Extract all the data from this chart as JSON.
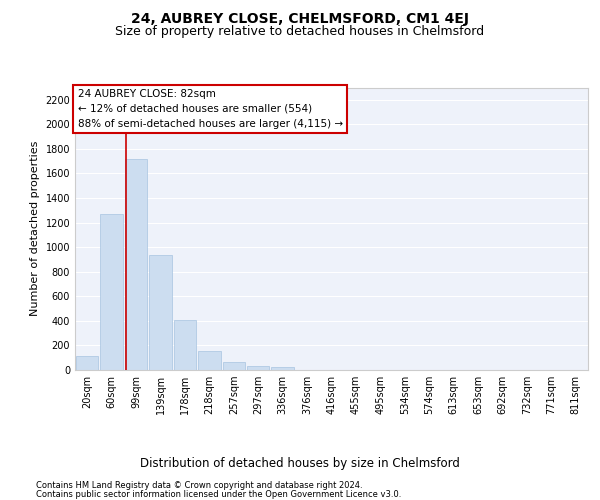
{
  "title": "24, AUBREY CLOSE, CHELMSFORD, CM1 4EJ",
  "subtitle": "Size of property relative to detached houses in Chelmsford",
  "xlabel": "Distribution of detached houses by size in Chelmsford",
  "ylabel": "Number of detached properties",
  "footer1": "Contains HM Land Registry data © Crown copyright and database right 2024.",
  "footer2": "Contains public sector information licensed under the Open Government Licence v3.0.",
  "categories": [
    "20sqm",
    "60sqm",
    "99sqm",
    "139sqm",
    "178sqm",
    "218sqm",
    "257sqm",
    "297sqm",
    "336sqm",
    "376sqm",
    "416sqm",
    "455sqm",
    "495sqm",
    "534sqm",
    "574sqm",
    "613sqm",
    "653sqm",
    "692sqm",
    "732sqm",
    "771sqm",
    "811sqm"
  ],
  "values": [
    110,
    1270,
    1720,
    940,
    410,
    155,
    65,
    35,
    25,
    0,
    0,
    0,
    0,
    0,
    0,
    0,
    0,
    0,
    0,
    0,
    0
  ],
  "bar_color": "#ccddf0",
  "bar_edgecolor": "#a8c4e0",
  "ylim": [
    0,
    2300
  ],
  "yticks": [
    0,
    200,
    400,
    600,
    800,
    1000,
    1200,
    1400,
    1600,
    1800,
    2000,
    2200
  ],
  "property_line_x": 1.58,
  "property_line_color": "#cc0000",
  "annotation_text": "24 AUBREY CLOSE: 82sqm\n← 12% of detached houses are smaller (554)\n88% of semi-detached houses are larger (4,115) →",
  "annotation_box_color": "#cc0000",
  "background_color": "#eef2fa",
  "grid_color": "#ffffff",
  "title_fontsize": 10,
  "subtitle_fontsize": 9,
  "tick_fontsize": 7,
  "ylabel_fontsize": 8,
  "xlabel_fontsize": 8.5,
  "annotation_fontsize": 7.5
}
